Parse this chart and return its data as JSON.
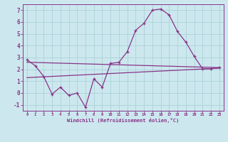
{
  "background_color": "#cce8ee",
  "grid_color": "#b0d4db",
  "line_color": "#883388",
  "xlabel": "Windchill (Refroidissement éolien,°C)",
  "xlim": [
    -0.5,
    23.5
  ],
  "ylim": [
    -1.5,
    7.5
  ],
  "yticks": [
    -1,
    0,
    1,
    2,
    3,
    4,
    5,
    6,
    7
  ],
  "xticks": [
    0,
    1,
    2,
    3,
    4,
    5,
    6,
    7,
    8,
    9,
    10,
    11,
    12,
    13,
    14,
    15,
    16,
    17,
    18,
    19,
    20,
    21,
    22,
    23
  ],
  "line1_x": [
    0,
    1,
    2,
    3,
    4,
    5,
    6,
    7,
    8,
    9,
    10,
    11,
    12,
    13,
    14,
    15,
    16,
    17,
    18,
    19,
    20,
    21,
    22,
    23
  ],
  "line1_y": [
    2.8,
    2.3,
    1.4,
    -0.1,
    0.5,
    -0.2,
    0.0,
    -1.2,
    1.2,
    0.5,
    2.5,
    2.6,
    3.5,
    5.3,
    5.9,
    7.0,
    7.1,
    6.6,
    5.2,
    4.3,
    3.1,
    2.05,
    2.05,
    2.15
  ],
  "line2_x": [
    0,
    23
  ],
  "line2_y": [
    2.6,
    2.15
  ],
  "line3_x": [
    0,
    23
  ],
  "line3_y": [
    1.3,
    2.1
  ]
}
